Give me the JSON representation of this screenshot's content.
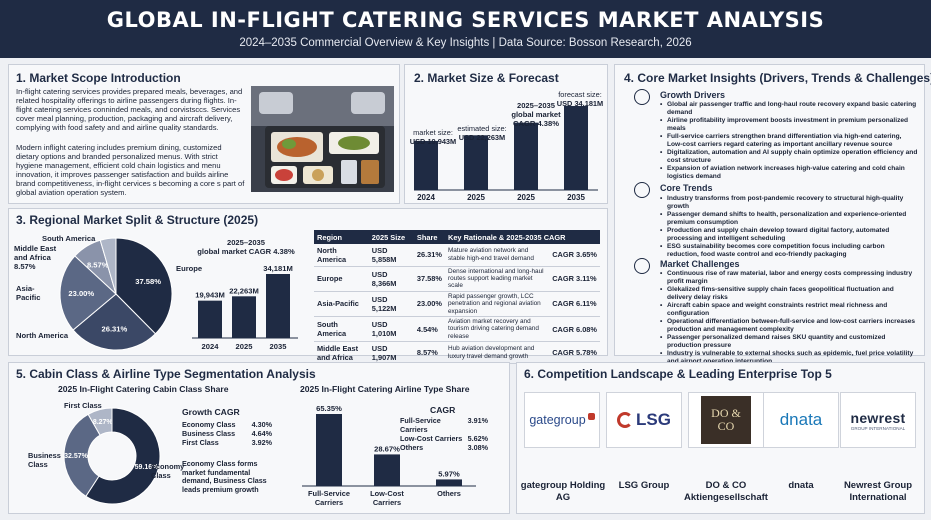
{
  "header": {
    "title": "GLOBAL IN-FLIGHT CATERING SERVICES MARKET ANALYSIS",
    "subtitle": "2024–2035 Commercial Overview & Key Insights | Data Source: Bosson Research, 2026"
  },
  "scope": {
    "title": "1. Market Scope Introduction",
    "para1": "In-flight catering services provides prepared meals, beverages, and related hospitality offerings to airline passengers during flights. In-flight catering services conninded meals, and corvistsccs. Services cover meal planning, production, packaging and aircraft delivery, complying with food safety and and airline quality standards.",
    "para2": "Modern inflight catering includes premium dining, customized dietary options and branded personalized menus. With strict hygiene management, efficient cold chain logistics and menu innovation, it improves passenger satisfaction and builds airline brand competitiveness, in-flight cervices s becoming a core s part of global aviation operation system."
  },
  "forecast": {
    "title": "2. Market Size & Forecast",
    "cagr_label_1": "2025–2035",
    "cagr_label_2": "global market",
    "cagr_label_3": "CAGR 4.38%",
    "labels": [
      {
        "l1": "market size:",
        "l2": "USD 19,943M"
      },
      {
        "l1": "estimated size:",
        "l2": "USD 22,263M"
      },
      {
        "l1": "forecast size:",
        "l2": "USD 34,181M"
      }
    ]
  },
  "regional": {
    "title": "3. Regional Market Split & Structure (2025)",
    "pie_labels": [
      "Europe",
      "Asia-Pacific",
      "North America",
      "South America",
      "Middle East and Africa 8.57%"
    ],
    "pie_values": [
      "37.58%",
      "23.00%",
      "26.31%",
      "8.57%"
    ],
    "bar_title_1": "2025–2035",
    "bar_title_2": "global market CAGR 4.38%",
    "table_headers": [
      "Region",
      "2025 Size",
      "Share",
      "Key Rationale & 2025-2035 CAGR"
    ],
    "rows": [
      {
        "region": "North America",
        "size": "USD 5,858M",
        "share": "26.31%",
        "rationale": "Mature aviation network and stable high-end travel demand",
        "cagr": "CAGR 3.65%"
      },
      {
        "region": "Europe",
        "size": "USD 8,366M",
        "share": "37.58%",
        "rationale": "Dense international and long-haul routes support leading market scale",
        "cagr": "CAGR 3.11%"
      },
      {
        "region": "Asia-Pacific",
        "size": "USD 5,122M",
        "share": "23.00%",
        "rationale": "Rapid passenger growth, LCC penetration and regional aviation expansion",
        "cagr": "CAGR 6.11%"
      },
      {
        "region": "South America",
        "size": "USD 1,010M",
        "share": "4.54%",
        "rationale": "Aviation market recovery and tourism driving catering demand release",
        "cagr": "CAGR 6.08%"
      },
      {
        "region": "Middle East and Africa",
        "size": "USD 1,907M",
        "share": "8.57%",
        "rationale": "Hub aviation development and luxury travel demand growth",
        "cagr": "CAGR 5.78%"
      }
    ]
  },
  "insights": {
    "title": "4. Core Market Insights (Drivers, Trends & Challenges)",
    "drivers_title": "Growth Drivers",
    "drivers": [
      "Global air passenger traffic and long-haul route recovery expand basic catering demand",
      "Airline profitability improvement boosts investment in premium personalized meals",
      "Full-service carriers strengthen brand differentiation via high-end catering, Low-cost carriers regard catering as important ancillary revenue source",
      "Digitalization, automation and AI supply chain optimize operation efficiency and cost structure",
      "Expansion of aviation network increases high-value catering and cold chain logistics demand"
    ],
    "trends_title": "Core Trends",
    "trends": [
      "Industry transforms from post-pandemic recovery to structural high-quality growth",
      "Passenger demand shifts to health, personalization and experience-oriented premium consumption",
      "Production and supply chain develop toward digital factory, automated processing and intelligent scheduling",
      "ESG sustainability becomes core competition focus including carbon reduction, food waste control and eco-friendly packaging"
    ],
    "challenges_title": "Market Challenges",
    "challenges": [
      "Continuous rise of raw material, labor and energy costs compressing industry profit margin",
      "Glekalized fims-sensitive supply chain faces geopolitical fluctuation and delivery delay risks",
      "Aircraft cabin space and weight constraints restrict meal richness and configuration",
      "Operational differentiation between-full-service and low-cost carriers increases production and management complexity",
      "Passenger personalized demand raises SKU quantity and customized production pressure",
      "Industry is vulnerable to external shocks such as epidemic, fuel price volatility and airport operation interruption"
    ]
  },
  "segmentation": {
    "title": "5. Cabin Class & Airline Type Segmentation Analysis",
    "cabin_title": "2025 In-Flight Catering Cabin Class Share",
    "cabin_labels": [
      "First Class",
      "Business Class",
      "Economy Class"
    ],
    "cabin_values": [
      "8.27%",
      "32.57%",
      "59.16%"
    ],
    "growth_title": "Growth CAGR",
    "growth": [
      {
        "name": "Economy Class",
        "value": "4.30%"
      },
      {
        "name": "Business Class",
        "value": "4.64%"
      },
      {
        "name": "First Class",
        "value": "3.92%"
      }
    ],
    "cabin_note": "Economy Class forms market fundamental demand, Business Class leads premium growth",
    "airline_title": "2025 In-Flight Catering Airline Type Share",
    "cagr_title": "CAGR",
    "airline_cagr": [
      {
        "name": "Full-Service Carriers",
        "value": "3.91%"
      },
      {
        "name": "Low-Cost Carriers",
        "value": "5.62%"
      },
      {
        "name": "Others",
        "value": "3.08%"
      }
    ]
  },
  "competition": {
    "title": "6. Competition Landscape & Leading Enterprise Top 5",
    "logos": [
      "gategroup",
      "LSG",
      "DO & CO",
      "dnata",
      "newrest",
      "GROUP INTERNATIONAL"
    ],
    "names": [
      "gategroup Holding AG",
      "LSG Group",
      "DO & CO Aktiengesellschaft",
      "dnata",
      "Newrest Group International"
    ]
  },
  "chart_data": [
    {
      "type": "bar",
      "categories": [
        "2024",
        "2025",
        "2035"
      ],
      "values": [
        19943,
        22263,
        34181
      ],
      "ylabel": "",
      "colors": [
        "#1f2b44"
      ]
    },
    {
      "type": "pie",
      "categories": [
        "Europe",
        "North America",
        "Asia-Pacific",
        "Middle East and Africa",
        "South America"
      ],
      "values": [
        37.58,
        26.31,
        23.0,
        8.57,
        4.54
      ],
      "colors": [
        "#1f2b44",
        "#3b4866",
        "#5b6885",
        "#8a93aa",
        "#aeb6c7"
      ]
    },
    {
      "type": "bar",
      "categories": [
        "2024",
        "2025",
        "2035"
      ],
      "values": [
        19943,
        22263,
        34181
      ],
      "value_labels": [
        "19,943M",
        "22,263M",
        "34,181M"
      ]
    },
    {
      "type": "pie",
      "categories": [
        "Economy Class",
        "Business Class",
        "First Class"
      ],
      "values": [
        59.16,
        32.57,
        8.27
      ],
      "colors": [
        "#1f2b44",
        "#5b6885",
        "#aeb6c7"
      ]
    },
    {
      "type": "bar",
      "categories": [
        "Full-Service Carriers",
        "Low-Cost Carriers",
        "Others"
      ],
      "values": [
        65.35,
        28.67,
        5.97
      ],
      "value_labels": [
        "65.35%",
        "28.67%",
        "5.97%"
      ]
    }
  ]
}
